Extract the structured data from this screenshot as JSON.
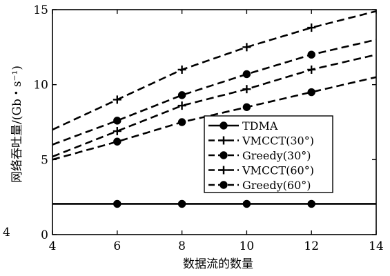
{
  "chart_data": {
    "type": "line",
    "title": "",
    "xlabel": "数据流的数量",
    "ylabel": "网络吞吐量/(Gb・s⁻¹)",
    "xlim": [
      4,
      14
    ],
    "ylim": [
      0,
      15
    ],
    "xticks": [
      "4",
      "6",
      "8",
      "10",
      "12",
      "14"
    ],
    "yticks": [
      "0",
      "5",
      "10",
      "15"
    ],
    "grid": false,
    "legend_position": "center-right",
    "series": [
      {
        "name": "TDMA",
        "line_style": "solid",
        "marker": "circle",
        "points": [
          [
            4,
            2.05
          ],
          [
            6,
            2.05
          ],
          [
            8,
            2.05
          ],
          [
            10,
            2.05
          ],
          [
            12,
            2.05
          ],
          [
            14,
            2.05
          ]
        ]
      },
      {
        "name": "VMCCT(30°)",
        "line_style": "dashed",
        "marker": "plus",
        "points": [
          [
            4,
            7.0
          ],
          [
            6,
            9.0
          ],
          [
            8,
            11.0
          ],
          [
            10,
            12.5
          ],
          [
            12,
            13.8
          ],
          [
            14,
            14.9
          ]
        ]
      },
      {
        "name": "Greedy(30°)",
        "line_style": "dashed",
        "marker": "circle",
        "points": [
          [
            4,
            6.0
          ],
          [
            6,
            7.6
          ],
          [
            8,
            9.3
          ],
          [
            10,
            10.7
          ],
          [
            12,
            12.0
          ],
          [
            14,
            13.0
          ]
        ]
      },
      {
        "name": "VMCCT(60°)",
        "line_style": "dashed",
        "marker": "plus",
        "points": [
          [
            4,
            5.2
          ],
          [
            6,
            6.9
          ],
          [
            8,
            8.6
          ],
          [
            10,
            9.7
          ],
          [
            12,
            11.0
          ],
          [
            14,
            12.0
          ]
        ]
      },
      {
        "name": "Greedy(60°)",
        "line_style": "dashed",
        "marker": "circle",
        "points": [
          [
            4,
            5.0
          ],
          [
            6,
            6.2
          ],
          [
            8,
            7.5
          ],
          [
            10,
            8.5
          ],
          [
            12,
            9.5
          ],
          [
            14,
            10.5
          ]
        ]
      }
    ]
  },
  "stray_label": "4"
}
